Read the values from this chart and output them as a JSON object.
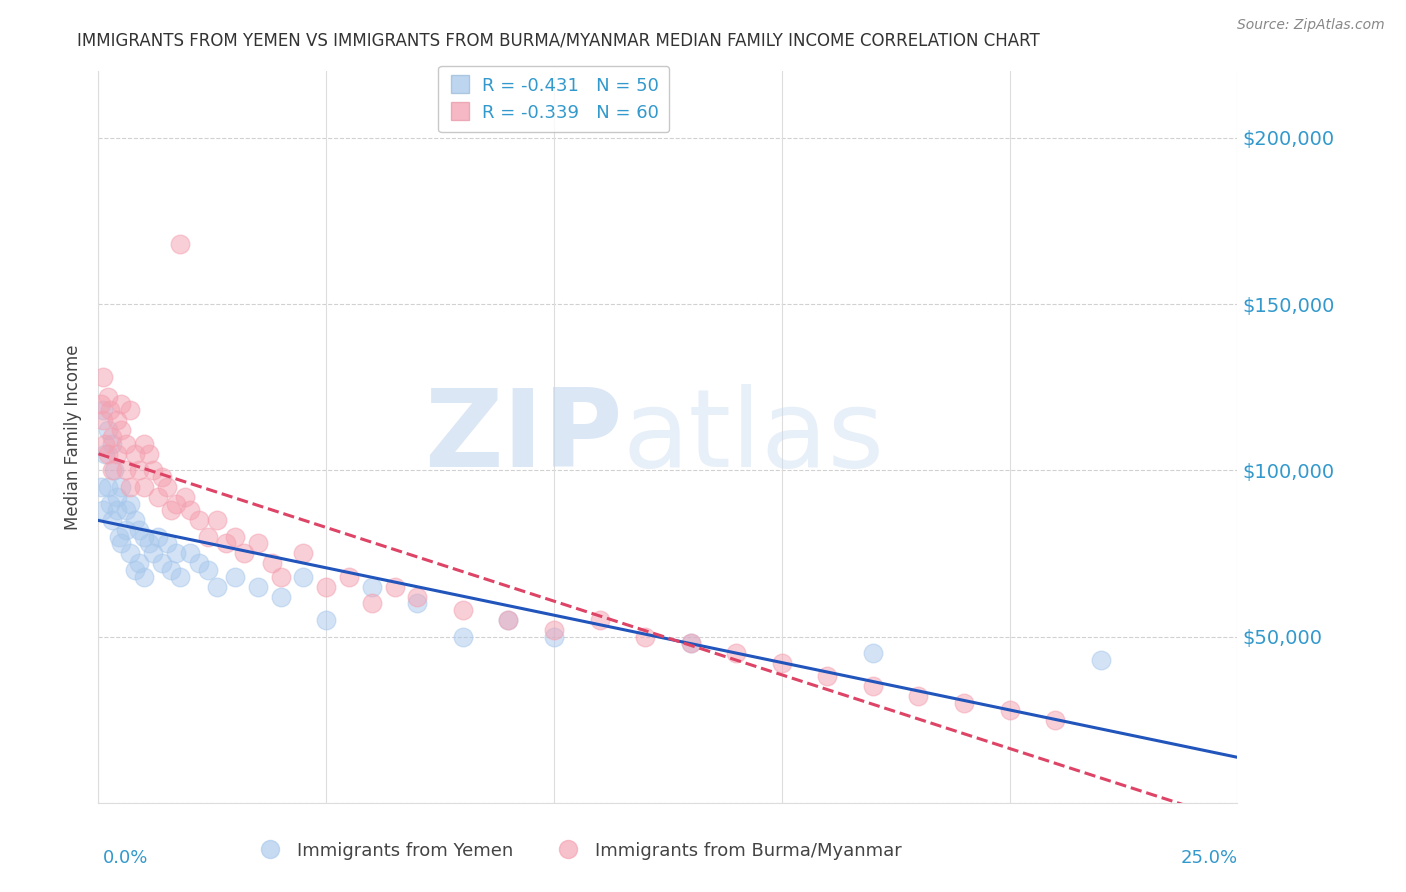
{
  "title": "IMMIGRANTS FROM YEMEN VS IMMIGRANTS FROM BURMA/MYANMAR MEDIAN FAMILY INCOME CORRELATION CHART",
  "source": "Source: ZipAtlas.com",
  "ylabel": "Median Family Income",
  "yticks": [
    0,
    50000,
    100000,
    150000,
    200000
  ],
  "ytick_labels": [
    "",
    "$50,000",
    "$100,000",
    "$150,000",
    "$200,000"
  ],
  "xlim": [
    0.0,
    0.25
  ],
  "ylim": [
    0,
    220000
  ],
  "legend_label_yemen": "Immigrants from Yemen",
  "legend_label_burma": "Immigrants from Burma/Myanmar",
  "color_yemen": "#a8c8ec",
  "color_burma": "#f4a0b0",
  "trend_color_yemen": "#2255bb",
  "trend_color_burma": "#dd4466",
  "yemen_R": -0.431,
  "burma_R": -0.339,
  "yemen_N": 50,
  "burma_N": 60,
  "yemen_x": [
    0.0005,
    0.001,
    0.001,
    0.0015,
    0.002,
    0.002,
    0.0025,
    0.003,
    0.003,
    0.0035,
    0.004,
    0.004,
    0.0045,
    0.005,
    0.005,
    0.006,
    0.006,
    0.007,
    0.007,
    0.008,
    0.008,
    0.009,
    0.009,
    0.01,
    0.01,
    0.011,
    0.012,
    0.013,
    0.014,
    0.015,
    0.016,
    0.017,
    0.018,
    0.02,
    0.022,
    0.024,
    0.026,
    0.03,
    0.035,
    0.04,
    0.045,
    0.05,
    0.06,
    0.07,
    0.08,
    0.09,
    0.1,
    0.13,
    0.17,
    0.22
  ],
  "yemen_y": [
    95000,
    118000,
    88000,
    105000,
    112000,
    95000,
    90000,
    108000,
    85000,
    100000,
    88000,
    92000,
    80000,
    95000,
    78000,
    88000,
    82000,
    90000,
    75000,
    85000,
    70000,
    82000,
    72000,
    80000,
    68000,
    78000,
    75000,
    80000,
    72000,
    78000,
    70000,
    75000,
    68000,
    75000,
    72000,
    70000,
    65000,
    68000,
    65000,
    62000,
    68000,
    55000,
    65000,
    60000,
    50000,
    55000,
    50000,
    48000,
    45000,
    43000
  ],
  "burma_x": [
    0.0005,
    0.001,
    0.001,
    0.0015,
    0.002,
    0.002,
    0.0025,
    0.003,
    0.003,
    0.004,
    0.004,
    0.005,
    0.005,
    0.006,
    0.006,
    0.007,
    0.007,
    0.008,
    0.009,
    0.01,
    0.01,
    0.011,
    0.012,
    0.013,
    0.014,
    0.015,
    0.016,
    0.017,
    0.018,
    0.019,
    0.02,
    0.022,
    0.024,
    0.026,
    0.028,
    0.03,
    0.032,
    0.035,
    0.038,
    0.04,
    0.045,
    0.05,
    0.055,
    0.06,
    0.065,
    0.07,
    0.08,
    0.09,
    0.1,
    0.11,
    0.12,
    0.13,
    0.14,
    0.15,
    0.16,
    0.17,
    0.18,
    0.19,
    0.2,
    0.21
  ],
  "burma_y": [
    120000,
    115000,
    128000,
    108000,
    122000,
    105000,
    118000,
    110000,
    100000,
    115000,
    105000,
    112000,
    120000,
    100000,
    108000,
    118000,
    95000,
    105000,
    100000,
    108000,
    95000,
    105000,
    100000,
    92000,
    98000,
    95000,
    88000,
    90000,
    168000,
    92000,
    88000,
    85000,
    80000,
    85000,
    78000,
    80000,
    75000,
    78000,
    72000,
    68000,
    75000,
    65000,
    68000,
    60000,
    65000,
    62000,
    58000,
    55000,
    52000,
    55000,
    50000,
    48000,
    45000,
    42000,
    38000,
    35000,
    32000,
    30000,
    28000,
    25000
  ],
  "background_color": "#ffffff",
  "grid_color": "#cccccc",
  "title_color": "#333333",
  "axis_color": "#3399cc"
}
